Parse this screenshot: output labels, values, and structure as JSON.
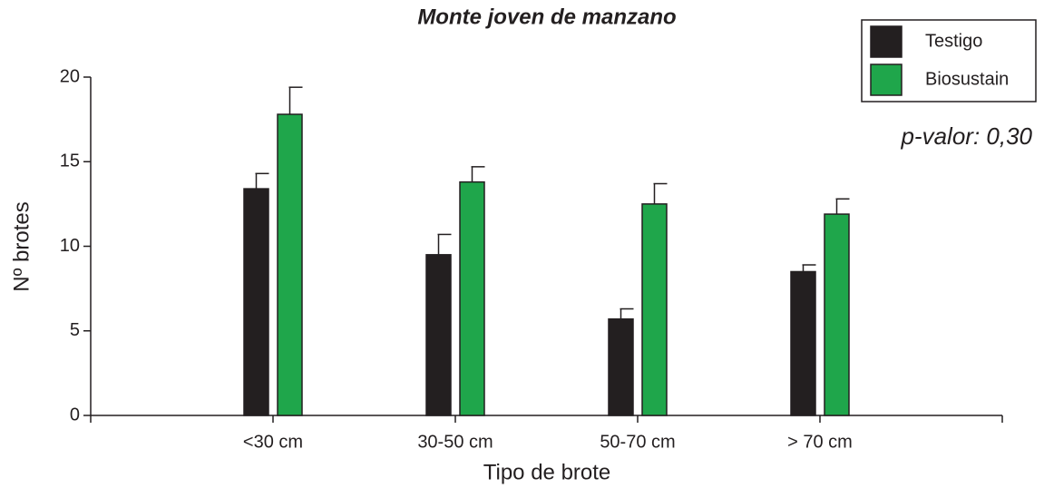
{
  "chart_data": {
    "type": "bar",
    "title": "Monte joven de manzano",
    "xlabel": "Tipo de brote",
    "ylabel": "Nº brotes",
    "annotation": "p-valor: 0,30",
    "categories": [
      "<30 cm",
      "30-50 cm",
      "50-70 cm",
      "> 70 cm"
    ],
    "series": [
      {
        "name": "Testigo",
        "color": "#231f20",
        "values": [
          13.4,
          9.5,
          5.7,
          8.5
        ],
        "errors": [
          0.9,
          1.2,
          0.6,
          0.4
        ]
      },
      {
        "name": "Biosustain",
        "color": "#1fa64b",
        "values": [
          17.8,
          13.8,
          12.5,
          11.9
        ],
        "errors": [
          1.6,
          0.9,
          1.2,
          0.9
        ]
      }
    ],
    "ylim": [
      0,
      20
    ],
    "yticks": [
      0,
      5,
      10,
      15,
      20
    ],
    "legend": "top-right"
  }
}
